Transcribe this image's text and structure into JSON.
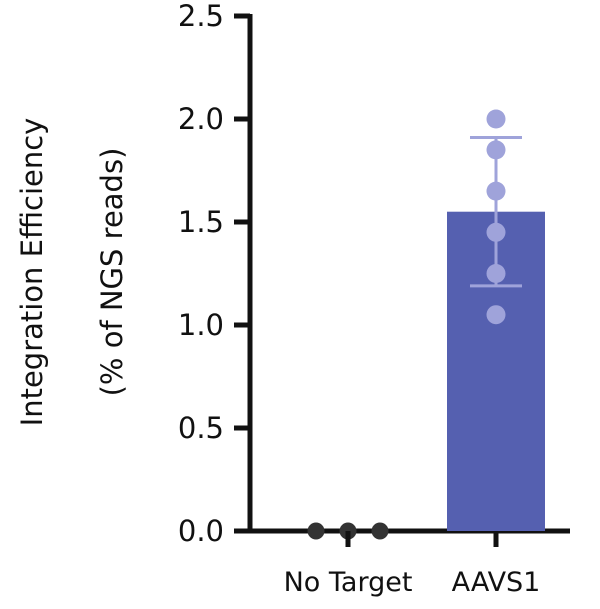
{
  "chart_data": {
    "type": "bar",
    "title": "",
    "xlabel": "",
    "ylabel": "Integration Efficiency",
    "ylabel_line2": "(% of NGS reads)",
    "ylim": [
      0,
      2.5
    ],
    "y_ticks": [
      "0.0",
      "0.5",
      "1.0",
      "1.5",
      "2.0",
      "2.5"
    ],
    "categories": [
      "No Target",
      "AAVS1"
    ],
    "values": [
      0.0,
      1.55
    ],
    "error": [
      0.0,
      0.36
    ],
    "points": [
      [
        0.0,
        0.0,
        0.0
      ],
      [
        2.0,
        1.85,
        1.65,
        1.45,
        1.25,
        1.05
      ]
    ],
    "grid": false
  },
  "colors": {
    "bar": "#5560b0",
    "points_aavs1": "#9fa3da",
    "points_notarget": "#333333",
    "axis": "#111111"
  }
}
